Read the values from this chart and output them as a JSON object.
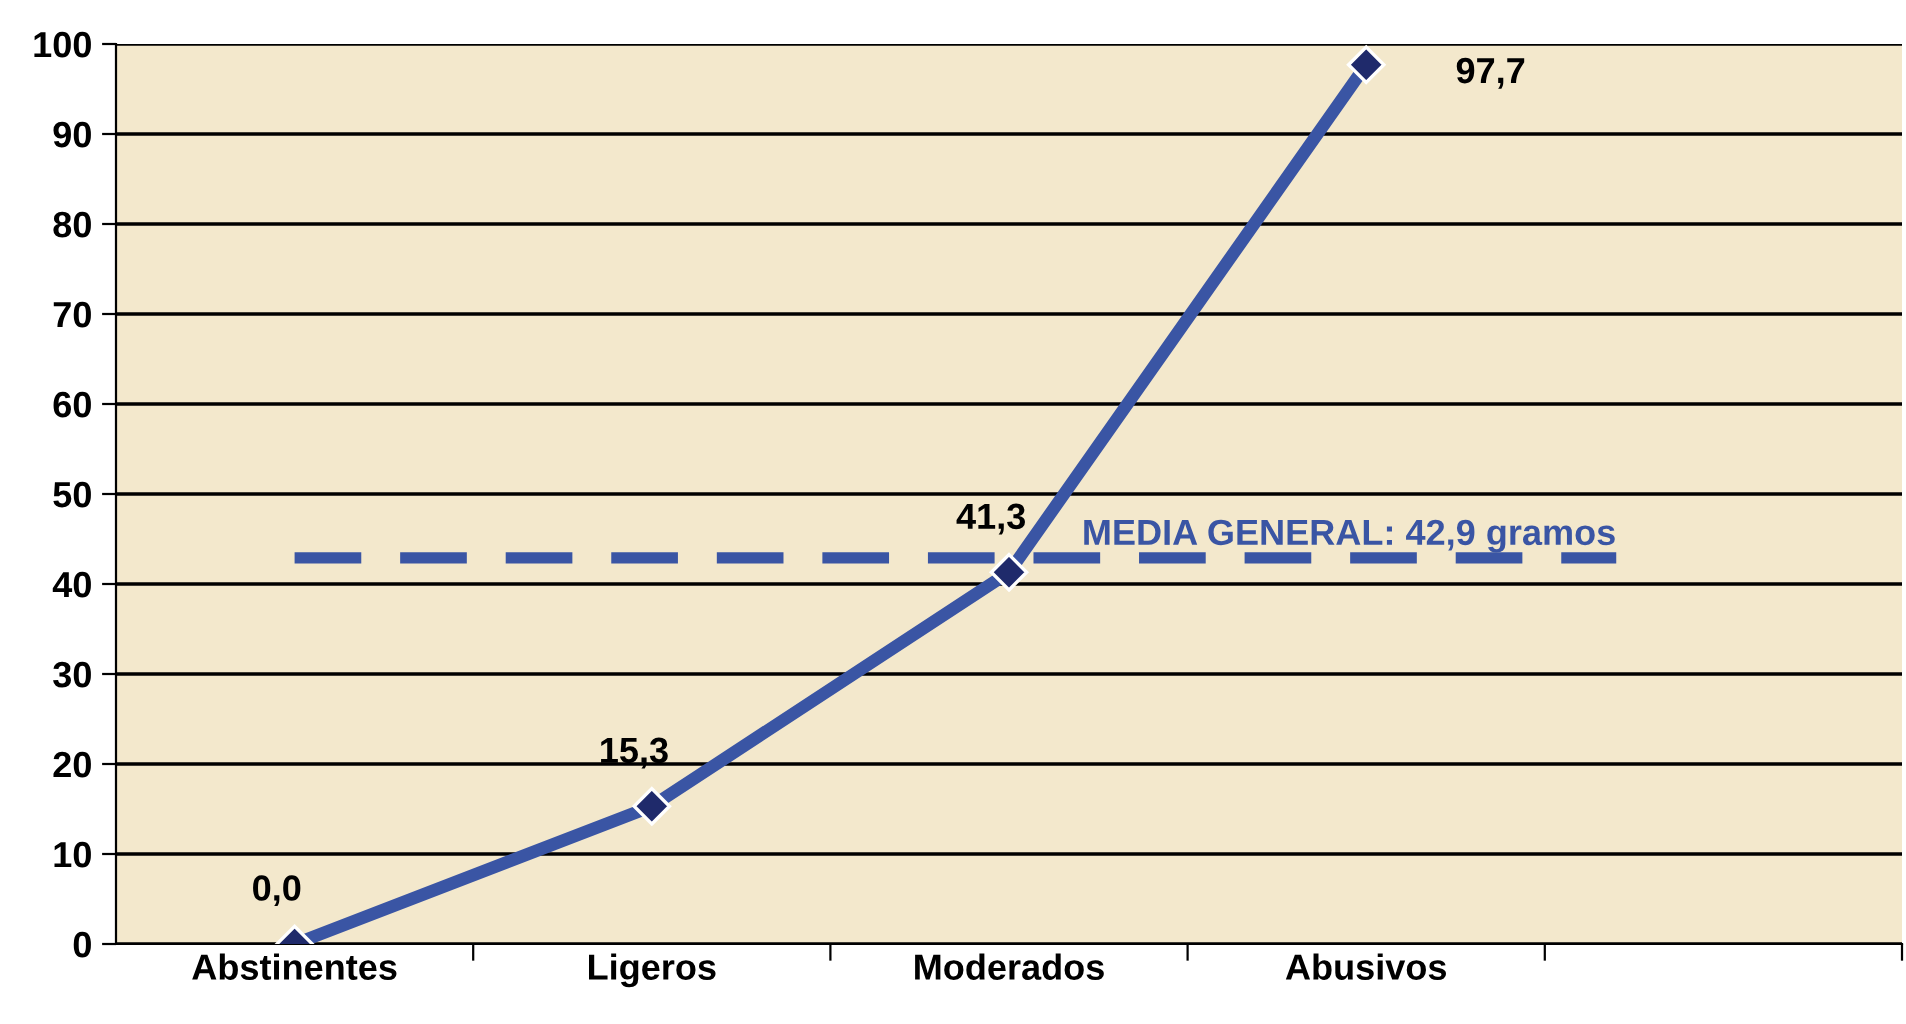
{
  "chart_data": {
    "type": "line",
    "categories": [
      "Abstinentes",
      "Ligeros",
      "Moderados",
      "Abusivos",
      null
    ],
    "series": [
      {
        "color": "#3a55a4",
        "values": [
          0,
          15.3,
          41.3,
          97.7,
          null
        ]
      }
    ],
    "value_labels": [
      "0,0",
      "15,3",
      "41,3",
      "97,7",
      null
    ],
    "ylim": [
      0,
      100
    ],
    "yticks": [
      0,
      10,
      20,
      30,
      40,
      50,
      60,
      70,
      80,
      90,
      100
    ],
    "grid": "y",
    "marker": "diamond",
    "line_style": "solid",
    "ref_lines": [
      {
        "axis": "y",
        "value": 42.9,
        "label": "MEDIA GENERAL: 42,9 gramos",
        "color": "#3a55a4",
        "line_style": "dashed"
      }
    ]
  }
}
